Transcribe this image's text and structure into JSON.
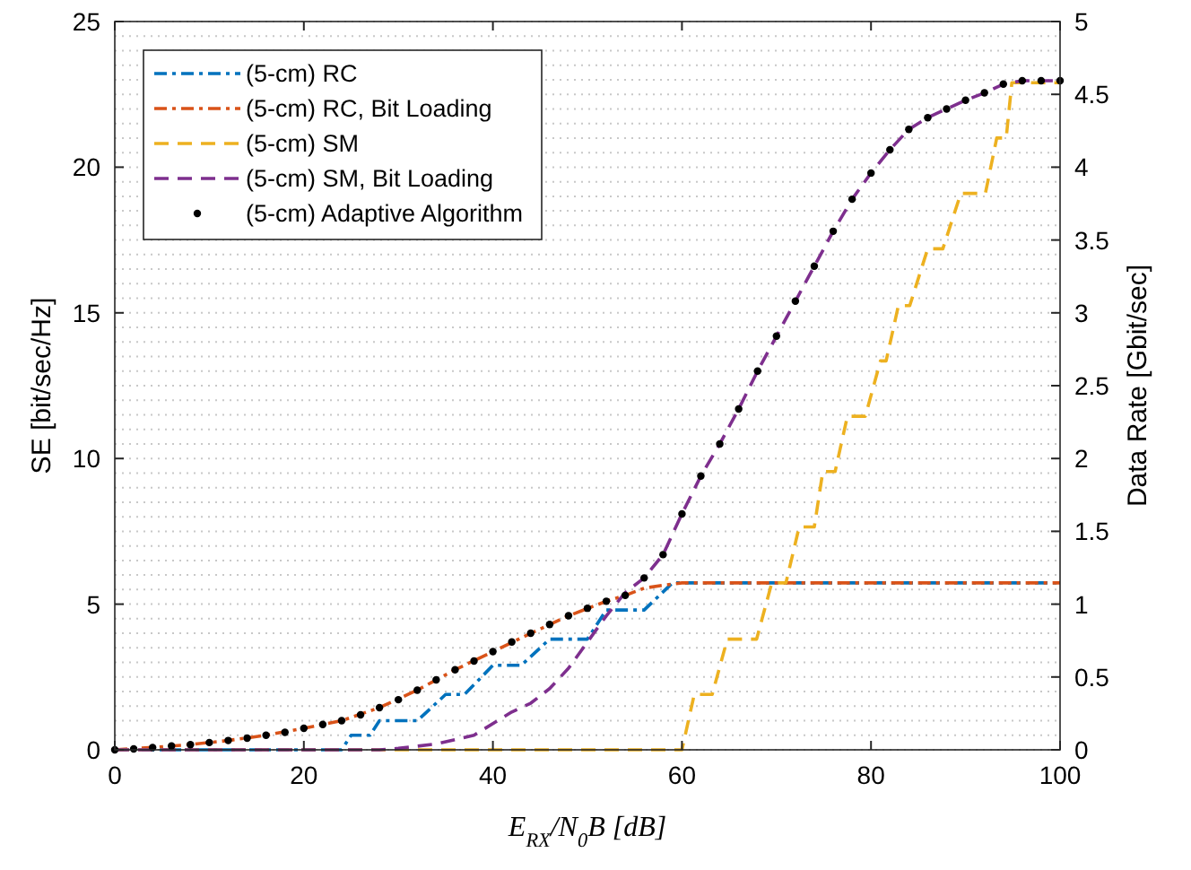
{
  "chart_data": {
    "type": "line",
    "xlabel": "E$_{RX}$/N$_{0}$B [dB]",
    "ylabel": "SE [bit/sec/Hz]",
    "y2label": "Data Rate [Gbit/sec]",
    "xlim": [
      0,
      100
    ],
    "xticks": [
      0,
      20,
      40,
      60,
      80,
      100
    ],
    "ylim": [
      0,
      25
    ],
    "yticks": [
      0,
      5,
      10,
      15,
      20,
      25
    ],
    "y2lim": [
      0,
      5
    ],
    "y2ticks": [
      0,
      {
        "value": 0.1,
        "label": null
      },
      {
        "value": 0.2,
        "label": null
      },
      {
        "value": 0.3,
        "label": null
      },
      {
        "value": 0.4,
        "label": null
      },
      0.5,
      {
        "value": 0.6,
        "label": null
      },
      {
        "value": 0.7,
        "label": null
      },
      {
        "value": 0.8,
        "label": null
      },
      {
        "value": 0.9,
        "label": null
      },
      1,
      {
        "value": 1.1,
        "label": null
      },
      {
        "value": 1.2,
        "label": null
      },
      {
        "value": 1.3,
        "label": null
      },
      {
        "value": 1.4,
        "label": null
      },
      1.5,
      {
        "value": 1.6,
        "label": null
      },
      {
        "value": 1.7,
        "label": null
      },
      {
        "value": 1.8,
        "label": null
      },
      {
        "value": 1.9,
        "label": null
      },
      2,
      {
        "value": 2.1,
        "label": null
      },
      {
        "value": 2.2,
        "label": null
      },
      {
        "value": 2.3,
        "label": null
      },
      {
        "value": 2.4,
        "label": null
      },
      2.5,
      {
        "value": 2.6,
        "label": null
      },
      {
        "value": 2.7,
        "label": null
      },
      {
        "value": 2.8,
        "label": null
      },
      {
        "value": 2.9,
        "label": null
      },
      3,
      {
        "value": 3.1,
        "label": null
      },
      {
        "value": 3.2,
        "label": null
      },
      {
        "value": 3.3,
        "label": null
      },
      {
        "value": 3.4,
        "label": null
      },
      3.5,
      {
        "value": 3.6,
        "label": null
      },
      {
        "value": 3.7,
        "label": null
      },
      {
        "value": 3.8,
        "label": null
      },
      {
        "value": 3.9,
        "label": null
      },
      4,
      {
        "value": 4.1,
        "label": null
      },
      {
        "value": 4.2,
        "label": null
      },
      {
        "value": 4.3,
        "label": null
      },
      {
        "value": 4.4,
        "label": null
      },
      4.5,
      {
        "value": 4.6,
        "label": null
      },
      {
        "value": 4.7,
        "label": null
      },
      {
        "value": 4.8,
        "label": null
      },
      {
        "value": 4.9,
        "label": null
      },
      5
    ],
    "grid": "y2",
    "legend": "top left",
    "series": [
      {
        "name": "(5-cm) RC",
        "color": "#0072bd",
        "line_style": "dashdot",
        "x": [
          0,
          24,
          25,
          27,
          28,
          32,
          35,
          37,
          40,
          43,
          46,
          50,
          52,
          56,
          59,
          100
        ],
        "values": [
          0,
          0,
          0.5,
          0.5,
          1.0,
          1.0,
          1.9,
          1.9,
          2.9,
          2.9,
          3.8,
          3.8,
          4.8,
          4.8,
          5.73,
          5.73
        ]
      },
      {
        "name": "(5-cm) RC, Bit Loading",
        "color": "#d95319",
        "line_style": "dashdot",
        "x": [
          0,
          4,
          8,
          12,
          16,
          20,
          24,
          28,
          32,
          36,
          40,
          44,
          48,
          52,
          54,
          56,
          58,
          60,
          100
        ],
        "values": [
          0,
          0.08,
          0.18,
          0.32,
          0.5,
          0.74,
          1.0,
          1.45,
          2.05,
          2.75,
          3.37,
          4.0,
          4.6,
          5.1,
          5.3,
          5.55,
          5.65,
          5.73,
          5.73
        ]
      },
      {
        "name": "(5-cm) SM",
        "color": "#edb120",
        "line_style": "dashed",
        "x": [
          0,
          60,
          61.3,
          63.2,
          64.8,
          67.9,
          69.5,
          71,
          72.4,
          74,
          74.9,
          76.2,
          77.5,
          79.4,
          81,
          81.6,
          82.9,
          84.1,
          86,
          87.6,
          89.5,
          92.1,
          93.3,
          94.3,
          94.9,
          100
        ],
        "values": [
          0,
          0,
          1.9,
          1.9,
          3.8,
          3.8,
          5.73,
          5.73,
          7.65,
          7.65,
          9.55,
          9.55,
          11.45,
          11.45,
          13.35,
          13.35,
          15.25,
          15.25,
          17.2,
          17.2,
          19.1,
          19.1,
          21.0,
          21.0,
          22.9,
          22.9
        ]
      },
      {
        "name": "(5-cm) SM, Bit Loading",
        "color": "#7e2f8e",
        "line_style": "dashed",
        "x": [
          0,
          28,
          30,
          34,
          38,
          42,
          44,
          46,
          48,
          50,
          52,
          54,
          56,
          58,
          60,
          62,
          64,
          66,
          68,
          70,
          72,
          74,
          76,
          78,
          80,
          82,
          84,
          86,
          88,
          90,
          92,
          94,
          96,
          98,
          100
        ],
        "values": [
          0,
          0,
          0.05,
          0.2,
          0.5,
          1.3,
          1.6,
          2.1,
          2.8,
          3.7,
          4.6,
          5.4,
          5.9,
          6.7,
          8.1,
          9.4,
          10.5,
          11.7,
          13.0,
          14.2,
          15.4,
          16.6,
          17.8,
          18.9,
          19.8,
          20.6,
          21.3,
          21.7,
          22.0,
          22.3,
          22.55,
          22.85,
          22.97,
          22.97,
          22.97
        ]
      },
      {
        "name": "(5-cm) Adaptive Algorithm",
        "type": "scatter",
        "marker": "circle",
        "color": "#000000",
        "x": [
          0,
          2,
          4,
          6,
          8,
          10,
          12,
          14,
          16,
          18,
          20,
          22,
          24,
          26,
          28,
          30,
          32,
          34,
          36,
          38,
          40,
          42,
          44,
          46,
          48,
          50,
          52,
          54,
          56,
          58,
          60,
          62,
          64,
          66,
          68,
          70,
          72,
          74,
          76,
          78,
          80,
          82,
          84,
          86,
          88,
          90,
          92,
          94,
          96,
          98,
          100
        ],
        "values": [
          0,
          0.03,
          0.08,
          0.13,
          0.18,
          0.25,
          0.32,
          0.4,
          0.5,
          0.6,
          0.74,
          0.87,
          1.0,
          1.2,
          1.45,
          1.72,
          2.05,
          2.4,
          2.75,
          3.05,
          3.37,
          3.7,
          4.0,
          4.3,
          4.6,
          4.86,
          5.1,
          5.3,
          5.9,
          6.7,
          8.1,
          9.4,
          10.5,
          11.7,
          13.0,
          14.2,
          15.4,
          16.6,
          17.8,
          18.9,
          19.8,
          20.6,
          21.3,
          21.7,
          22.0,
          22.3,
          22.55,
          22.85,
          22.97,
          22.97,
          22.97
        ]
      }
    ]
  }
}
